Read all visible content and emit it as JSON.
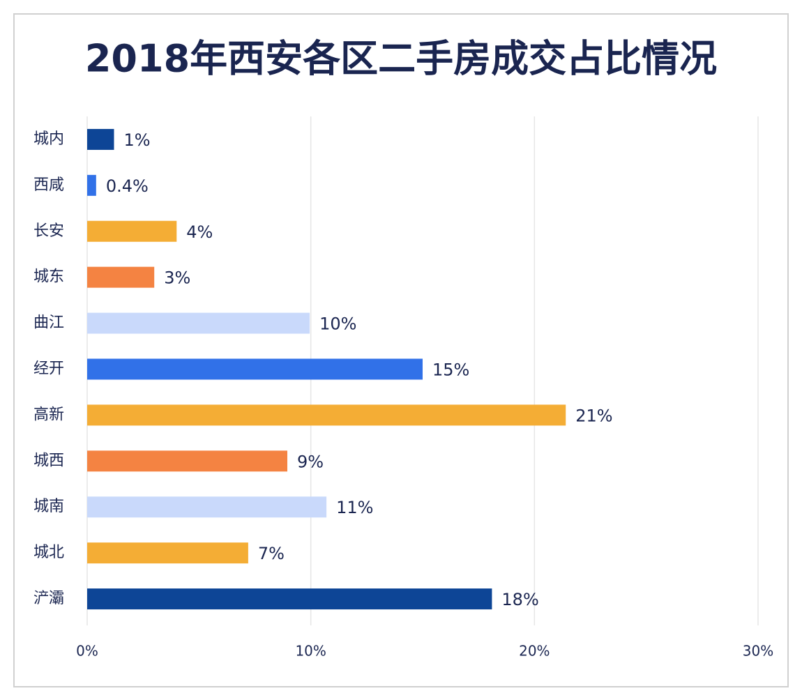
{
  "chart_data": {
    "type": "bar",
    "orientation": "horizontal",
    "title": "2018年西安各区二手房成交占比情况",
    "categories": [
      "城内",
      "西咸",
      "长安",
      "城东",
      "曲江",
      "经开",
      "高新",
      "城西",
      "城南",
      "城北",
      "浐灞"
    ],
    "values": [
      1.2,
      0.4,
      4,
      3,
      9.95,
      15,
      21.4,
      8.95,
      10.7,
      7.2,
      18.1
    ],
    "value_labels": [
      "1%",
      "0.4%",
      "4%",
      "3%",
      "10%",
      "15%",
      "21%",
      "9%",
      "11%",
      "7%",
      "18%"
    ],
    "colors": [
      "#0d4596",
      "#3171e8",
      "#f4ad35",
      "#f48342",
      "#c9d9fb",
      "#3171e8",
      "#f4ad35",
      "#f48342",
      "#c9d9fb",
      "#f4ad35",
      "#0d4596"
    ],
    "xlim": [
      0,
      30
    ],
    "xticks": [
      {
        "value": 0,
        "label": "0%"
      },
      {
        "value": 10,
        "label": "10%"
      },
      {
        "value": 20,
        "label": "20%"
      },
      {
        "value": 30,
        "label": "30%"
      }
    ],
    "grid": true
  }
}
